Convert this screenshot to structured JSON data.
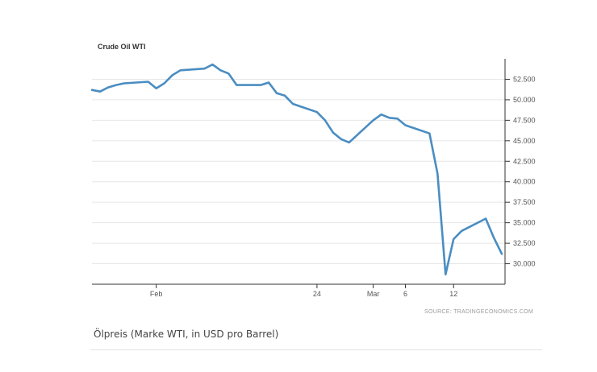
{
  "chart_data": {
    "type": "line",
    "title": "Crude Oil WTI",
    "xlabel": "",
    "ylabel": "",
    "color": "#4a8dc2",
    "ylim": [
      27.5,
      55.0
    ],
    "yticks": [
      "30.000",
      "32.500",
      "35.000",
      "37.500",
      "40.000",
      "42.500",
      "45.000",
      "47.500",
      "50.000",
      "52.500"
    ],
    "ytick_values": [
      30,
      32.5,
      35,
      37.5,
      40,
      42.5,
      45,
      47.5,
      50,
      52.5
    ],
    "xticks": [
      "Feb",
      "24",
      "Mar",
      "6",
      "12"
    ],
    "x": [
      "2020-01-27",
      "2020-01-28",
      "2020-01-29",
      "2020-01-30",
      "2020-01-31",
      "2020-02-03",
      "2020-02-04",
      "2020-02-05",
      "2020-02-06",
      "2020-02-07",
      "2020-02-10",
      "2020-02-11",
      "2020-02-12",
      "2020-02-13",
      "2020-02-14",
      "2020-02-17",
      "2020-02-18",
      "2020-02-19",
      "2020-02-20",
      "2020-02-21",
      "2020-02-24",
      "2020-02-25",
      "2020-02-26",
      "2020-02-27",
      "2020-02-28",
      "2020-03-02",
      "2020-03-03",
      "2020-03-04",
      "2020-03-05",
      "2020-03-06",
      "2020-03-09",
      "2020-03-10",
      "2020-03-11",
      "2020-03-12",
      "2020-03-13",
      "2020-03-16",
      "2020-03-17",
      "2020-03-18"
    ],
    "series": [
      {
        "values": [
          51.2,
          51.0,
          51.5,
          51.8,
          52.0,
          52.2,
          51.4,
          52.0,
          53.0,
          53.6,
          53.8,
          54.3,
          53.6,
          53.2,
          51.8,
          51.8,
          52.1,
          50.8,
          50.5,
          49.5,
          48.5,
          47.5,
          46.0,
          45.2,
          44.8,
          47.5,
          48.2,
          47.8,
          47.7,
          46.9,
          45.9,
          41.0,
          28.7,
          33.0,
          34.0,
          35.5,
          33.2,
          31.2
        ]
      }
    ]
  },
  "source": "SOURCE: TRADINGECONOMICS.COM",
  "caption": "Ölpreis (Marke WTI, in USD pro Barrel)"
}
